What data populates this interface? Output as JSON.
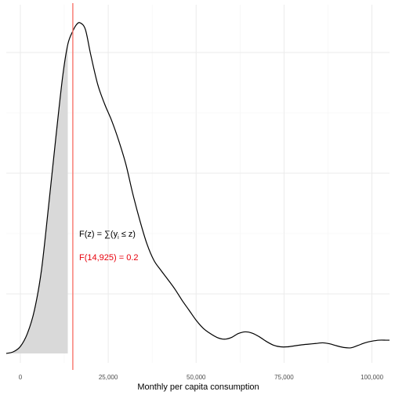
{
  "chart_data": {
    "type": "area",
    "title": "",
    "xlabel": "Monthly per capita consumption",
    "ylabel": "",
    "xlim": [
      -4000,
      105000
    ],
    "ylim": [
      0,
      1
    ],
    "x_ticks": [
      0,
      25000,
      50000,
      75000,
      100000
    ],
    "x_tick_labels": [
      "0",
      "25,000",
      "50,000",
      "75,000",
      "100,000"
    ],
    "grid": true,
    "legend": "none",
    "series": [
      {
        "kind": "density",
        "x": [
          -4000,
          -2000,
          0,
          2000,
          4000,
          6000,
          8000,
          10000,
          12000,
          13500,
          14925,
          16000,
          17000,
          18500,
          20000,
          22000,
          24000,
          26000,
          28000,
          30000,
          32000,
          34000,
          36000,
          38000,
          40000,
          42000,
          44000,
          46000,
          48000,
          50000,
          52000,
          54000,
          56000,
          58000,
          60000,
          62000,
          64000,
          66000,
          68000,
          70000,
          72000,
          74000,
          76000,
          78000,
          80000,
          82000,
          84000,
          86000,
          88000,
          90000,
          92000,
          94000,
          96000,
          98000,
          100000,
          102000,
          104000,
          105000
        ],
        "y": [
          0,
          0.005,
          0.021,
          0.06,
          0.13,
          0.25,
          0.44,
          0.64,
          0.83,
          0.93,
          0.97,
          0.99,
          0.995,
          0.975,
          0.9,
          0.81,
          0.75,
          0.7,
          0.64,
          0.57,
          0.48,
          0.4,
          0.33,
          0.28,
          0.25,
          0.222,
          0.193,
          0.16,
          0.13,
          0.1,
          0.076,
          0.06,
          0.048,
          0.043,
          0.048,
          0.06,
          0.065,
          0.061,
          0.05,
          0.036,
          0.025,
          0.02,
          0.02,
          0.023,
          0.026,
          0.028,
          0.03,
          0.032,
          0.029,
          0.023,
          0.018,
          0.017,
          0.024,
          0.032,
          0.037,
          0.04,
          0.04,
          0.04
        ]
      }
    ],
    "shade_upto_x": 13500,
    "threshold_x": 14925,
    "threshold_color": "#f8766d",
    "colors": {
      "line": "#000000",
      "fill": "#d9d9d9",
      "grid": "#ebebeb"
    },
    "annotations": [
      {
        "id": "formula",
        "text_main": "F(z) = ∑(y",
        "text_sub": "i",
        "text_rest": " ≤ z)",
        "color": "#000000"
      },
      {
        "id": "value",
        "text": "F(14,925) = 0.2",
        "color": "#e8000b"
      }
    ]
  }
}
